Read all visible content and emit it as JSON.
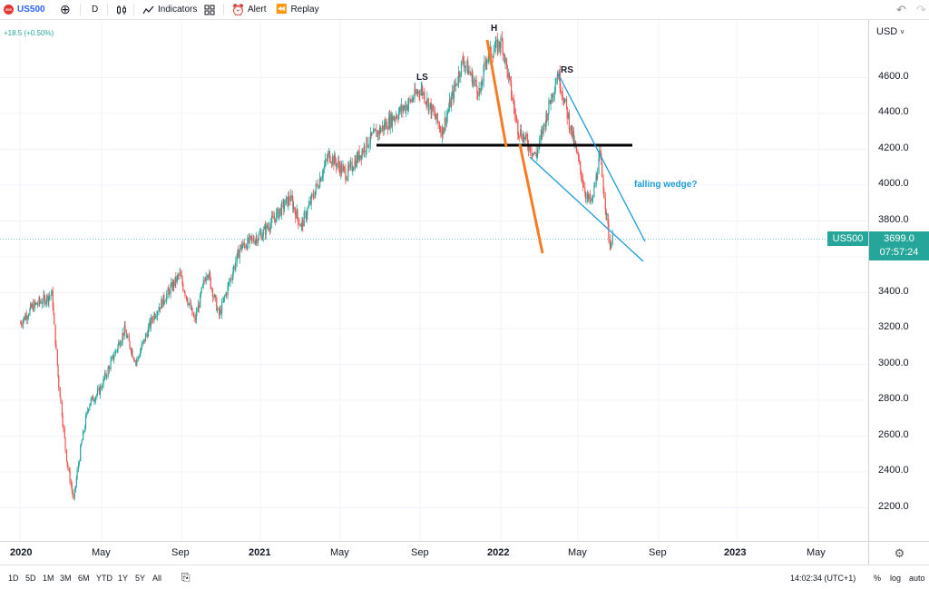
{
  "toolbar": {
    "symbol": "US500",
    "logo_text": "500",
    "add_icon": "plus-circle-icon",
    "interval": "D",
    "chart_type_icon": "candles-icon",
    "indicators_label": "Indicators",
    "templates_icon": "grid-icon",
    "alert_label": "Alert",
    "replay_label": "Replay",
    "undo_icon": "undo-icon",
    "redo_icon": "redo-icon"
  },
  "chart": {
    "change_text": "+18.5 (+0.50%)",
    "price_labels": [
      "4600.0",
      "4400.0",
      "4200.0",
      "4000.0",
      "3800.0",
      "3400.0",
      "3200.0",
      "3000.0",
      "2800.0",
      "2600.0",
      "2400.0",
      "2200.0"
    ],
    "currency": "USD",
    "time_labels": [
      {
        "text": "2020",
        "year": true
      },
      {
        "text": "May",
        "year": false
      },
      {
        "text": "Sep",
        "year": false
      },
      {
        "text": "2021",
        "year": true
      },
      {
        "text": "May",
        "year": false
      },
      {
        "text": "Sep",
        "year": false
      },
      {
        "text": "2022",
        "year": true
      },
      {
        "text": "May",
        "year": false
      },
      {
        "text": "Sep",
        "year": false
      },
      {
        "text": "2023",
        "year": true
      },
      {
        "text": "May",
        "year": false
      }
    ],
    "annotations": {
      "ls": "LS",
      "h": "H",
      "rs": "RS",
      "wedge": "falling wedge?"
    },
    "badge_symbol": "US500",
    "badge_price": "3699.0",
    "badge_countdown": "07:57:24",
    "colors": {
      "up": "#26a69a",
      "down": "#ef5350",
      "neckline": "#000000",
      "orange": "#f57c24",
      "wedge": "#1e9bd7",
      "badge": "#26a69a"
    }
  },
  "chart_data": {
    "type": "candlestick",
    "series_points": [
      [
        "2020-01-02",
        3230
      ],
      [
        "2020-01-20",
        3320
      ],
      [
        "2020-02-19",
        3390
      ],
      [
        "2020-02-28",
        2950
      ],
      [
        "2020-03-12",
        2480
      ],
      [
        "2020-03-23",
        2240
      ],
      [
        "2020-04-02",
        2520
      ],
      [
        "2020-04-15",
        2780
      ],
      [
        "2020-05-01",
        2850
      ],
      [
        "2020-06-08",
        3190
      ],
      [
        "2020-06-26",
        3010
      ],
      [
        "2020-07-22",
        3270
      ],
      [
        "2020-08-31",
        3500
      ],
      [
        "2020-09-23",
        3240
      ],
      [
        "2020-10-12",
        3530
      ],
      [
        "2020-10-30",
        3270
      ],
      [
        "2020-12-01",
        3650
      ],
      [
        "2021-01-04",
        3730
      ],
      [
        "2021-02-15",
        3930
      ],
      [
        "2021-03-04",
        3770
      ],
      [
        "2021-04-15",
        4170
      ],
      [
        "2021-05-12",
        4060
      ],
      [
        "2021-06-15",
        4250
      ],
      [
        "2021-08-15",
        4460
      ],
      [
        "2021-09-02",
        4540
      ],
      [
        "2021-10-04",
        4300
      ],
      [
        "2021-11-05",
        4700
      ],
      [
        "2021-12-01",
        4510
      ],
      [
        "2021-12-10",
        4710
      ],
      [
        "2022-01-03",
        4800
      ],
      [
        "2022-01-27",
        4320
      ],
      [
        "2022-02-24",
        4160
      ],
      [
        "2022-03-29",
        4630
      ],
      [
        "2022-05-12",
        3930
      ],
      [
        "2022-05-20",
        3900
      ],
      [
        "2022-06-01",
        4170
      ],
      [
        "2022-06-16",
        3670
      ],
      [
        "2022-06-21",
        3699
      ]
    ],
    "last_price": 3699.0,
    "ylim": [
      2100,
      4850
    ],
    "y_axis_label": "USD",
    "patterns": {
      "head_and_shoulders": [
        "LS",
        "H",
        "RS"
      ],
      "neckline_price": 4220,
      "wedge_label": "falling wedge?"
    }
  },
  "bottom": {
    "ranges": [
      "1D",
      "5D",
      "1M",
      "3M",
      "6M",
      "YTD",
      "1Y",
      "5Y",
      "All"
    ],
    "compare_icon": "calendar-range-icon",
    "time": "14:02:34 (UTC+1)",
    "pct": "%",
    "log": "log",
    "auto": "auto"
  }
}
